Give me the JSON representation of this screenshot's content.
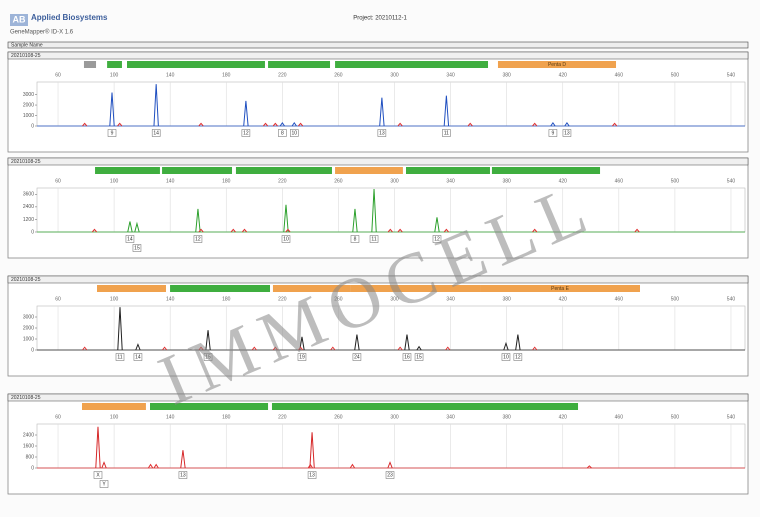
{
  "header": {
    "logo": "AB",
    "brand": "Applied Biosystems",
    "software": "GeneMapper® ID-X 1.6",
    "project": "Project: 20210112-1",
    "sample_column": "Sample Name"
  },
  "watermark": "IMMOCELL",
  "chart_data": [
    {
      "type": "peak",
      "title": "20210108-25",
      "xlim": [
        45,
        550
      ],
      "xticks": [
        60,
        100,
        140,
        180,
        220,
        260,
        300,
        340,
        380,
        420,
        460,
        500,
        540
      ],
      "ylim": [
        0,
        4200
      ],
      "yticks": [
        0,
        1000,
        2000,
        3000
      ],
      "grid": true,
      "markers": [
        {
          "start": 78.5,
          "end": 87.1,
          "color": "#9a9a9a"
        },
        {
          "start": 95,
          "end": 105.6,
          "color": "#3fae3f"
        },
        {
          "start": 109.2,
          "end": 207.6,
          "color": "#3fae3f"
        },
        {
          "start": 209.8,
          "end": 254,
          "color": "#3fae3f"
        },
        {
          "start": 257.6,
          "end": 366.7,
          "color": "#3fae3f"
        },
        {
          "start": 373.8,
          "end": 458,
          "color": "#f0a24e",
          "name": "Penta D"
        }
      ],
      "series": [
        {
          "color": "#1f4fc0",
          "x": [
            98.5,
            130,
            194,
            220,
            228.5,
            291,
            337,
            413,
            423
          ],
          "values": [
            3200,
            4000,
            2400,
            300,
            300,
            2700,
            2900,
            300,
            300
          ],
          "labels": [
            "9",
            "14",
            "12",
            "8",
            "10",
            "13",
            "11",
            "9",
            "13"
          ]
        },
        {
          "color": "#e03030",
          "x": [
            79,
            104,
            162,
            208,
            215,
            233,
            304,
            354,
            400,
            457
          ],
          "values": [
            250,
            250,
            250,
            250,
            250,
            250,
            250,
            250,
            250,
            250
          ]
        }
      ]
    },
    {
      "type": "peak",
      "title": "20210108-25",
      "xlim": [
        45,
        550
      ],
      "xticks": [
        60,
        100,
        140,
        180,
        220,
        260,
        300,
        340,
        380,
        420,
        460,
        500,
        540
      ],
      "ylim": [
        0,
        4200
      ],
      "yticks": [
        0,
        1200,
        2400,
        3600
      ],
      "grid": true,
      "markers": [
        {
          "start": 86.4,
          "end": 132.7,
          "color": "#3fae3f"
        },
        {
          "start": 134.2,
          "end": 184.1,
          "color": "#3fae3f"
        },
        {
          "start": 186.9,
          "end": 255.4,
          "color": "#3fae3f"
        },
        {
          "start": 257.6,
          "end": 306,
          "color": "#f0a24e"
        },
        {
          "start": 308.2,
          "end": 368.1,
          "color": "#3fae3f"
        },
        {
          "start": 369.5,
          "end": 446.6,
          "color": "#3fae3f"
        }
      ],
      "series": [
        {
          "color": "#2ca02c",
          "x": [
            111.3,
            116.3,
            159.8,
            222.6,
            271.8,
            285.4,
            330.3
          ],
          "values": [
            1000,
            800,
            2200,
            2600,
            2200,
            4100,
            1400
          ],
          "labels": [
            "14",
            "15",
            "12",
            "10",
            "8",
            "11",
            "12"
          ]
        },
        {
          "color": "#e03030",
          "x": [
            86,
            162,
            185,
            193,
            224,
            297,
            304,
            337,
            400,
            473
          ],
          "values": [
            250,
            250,
            250,
            250,
            250,
            250,
            250,
            250,
            250,
            250
          ]
        }
      ]
    },
    {
      "type": "peak",
      "title": "20210108-25",
      "xlim": [
        45,
        550
      ],
      "xticks": [
        60,
        100,
        140,
        180,
        220,
        260,
        300,
        340,
        380,
        420,
        460,
        500,
        540
      ],
      "ylim": [
        0,
        4000
      ],
      "yticks": [
        0,
        1000,
        2000,
        3000
      ],
      "grid": true,
      "markers": [
        {
          "start": 87.8,
          "end": 137,
          "color": "#f0a24e"
        },
        {
          "start": 139.9,
          "end": 211.2,
          "color": "#3fae3f"
        },
        {
          "start": 213.3,
          "end": 268.3,
          "color": "#f0a24e"
        },
        {
          "start": 268.3,
          "end": 361,
          "color": "#f0a24e"
        },
        {
          "start": 361,
          "end": 475.1,
          "color": "#f0a24e",
          "name": "Penta E"
        }
      ],
      "series": [
        {
          "color": "#222222",
          "x": [
            104.2,
            117,
            167,
            234,
            273.2,
            308.9,
            317.5,
            379.5,
            388
          ],
          "values": [
            3900,
            500,
            1800,
            1200,
            1400,
            1400,
            300,
            600,
            1400
          ],
          "labels": [
            "11",
            "14",
            "15",
            "19",
            "24",
            "16",
            "15",
            "10",
            "12"
          ]
        },
        {
          "color": "#e03030",
          "x": [
            79,
            136,
            162,
            200,
            215,
            233,
            256,
            304,
            338,
            400
          ],
          "values": [
            250,
            250,
            250,
            250,
            250,
            250,
            250,
            250,
            250,
            250
          ]
        }
      ]
    },
    {
      "type": "peak",
      "title": "20210108-25",
      "xlim": [
        45,
        550
      ],
      "xticks": [
        60,
        100,
        140,
        180,
        220,
        260,
        300,
        340,
        380,
        420,
        460,
        500,
        540
      ],
      "ylim": [
        0,
        3200
      ],
      "yticks": [
        0,
        800,
        1600,
        2400
      ],
      "grid": true,
      "markers": [
        {
          "start": 77.1,
          "end": 122.7,
          "color": "#f0a24e"
        },
        {
          "start": 125.6,
          "end": 209.8,
          "color": "#3fae3f"
        },
        {
          "start": 212.6,
          "end": 430.9,
          "color": "#3fae3f"
        }
      ],
      "series": [
        {
          "color": "#d62728",
          "x": [
            88.5,
            92.8,
            149.1,
            241.2,
            296.8
          ],
          "values": [
            3000,
            400,
            1300,
            2600,
            400
          ],
          "labels": [
            "X",
            "Y",
            "13",
            "13",
            "23"
          ]
        },
        {
          "color": "#e03030",
          "x": [
            126,
            130,
            240,
            270,
            439
          ],
          "values": [
            250,
            250,
            250,
            250,
            150
          ]
        }
      ]
    }
  ]
}
